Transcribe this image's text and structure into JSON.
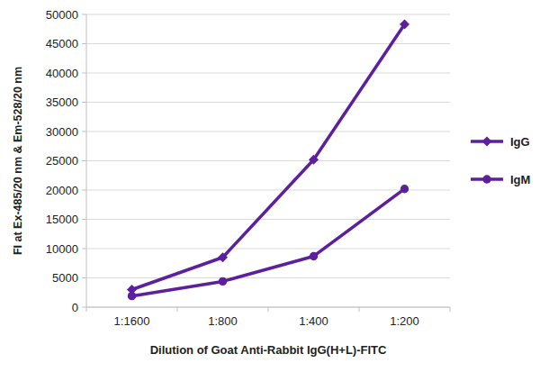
{
  "chart_data": {
    "type": "line",
    "x_label": "Dilution of Goat Anti-Rabbit IgG(H+L)-FITC",
    "y_label": "FI at Ex-485/20 nm & Em-528/20 nm",
    "categories": [
      "1:1600",
      "1:800",
      "1:400",
      "1:200"
    ],
    "series": [
      {
        "name": "IgG",
        "color": "#5c1f9e",
        "marker": "diamond",
        "values": [
          3000,
          8500,
          25200,
          48300
        ]
      },
      {
        "name": "IgM",
        "color": "#5c1f9e",
        "marker": "circle",
        "values": [
          1900,
          4400,
          8700,
          20200
        ]
      }
    ],
    "ylim": [
      0,
      50000
    ],
    "yticks": [
      0,
      5000,
      10000,
      15000,
      20000,
      25000,
      30000,
      35000,
      40000,
      45000,
      50000
    ],
    "grid": true,
    "legend": "right"
  }
}
